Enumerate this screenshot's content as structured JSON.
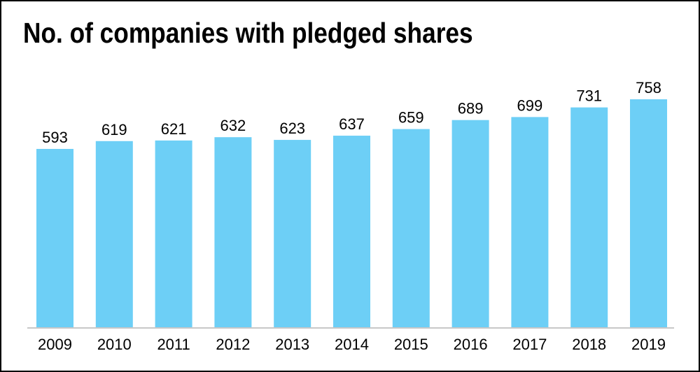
{
  "chart_data": {
    "type": "bar",
    "title": "No. of companies with pledged shares",
    "categories": [
      "2009",
      "2010",
      "2011",
      "2012",
      "2013",
      "2014",
      "2015",
      "2016",
      "2017",
      "2018",
      "2019"
    ],
    "values": [
      593,
      619,
      621,
      632,
      623,
      637,
      659,
      689,
      699,
      731,
      758
    ],
    "xlabel": "",
    "ylabel": "",
    "ylim": [
      0,
      758
    ],
    "grid": false,
    "bar_color": "#6dcff6",
    "baseline_color": "#c8c8c8"
  }
}
